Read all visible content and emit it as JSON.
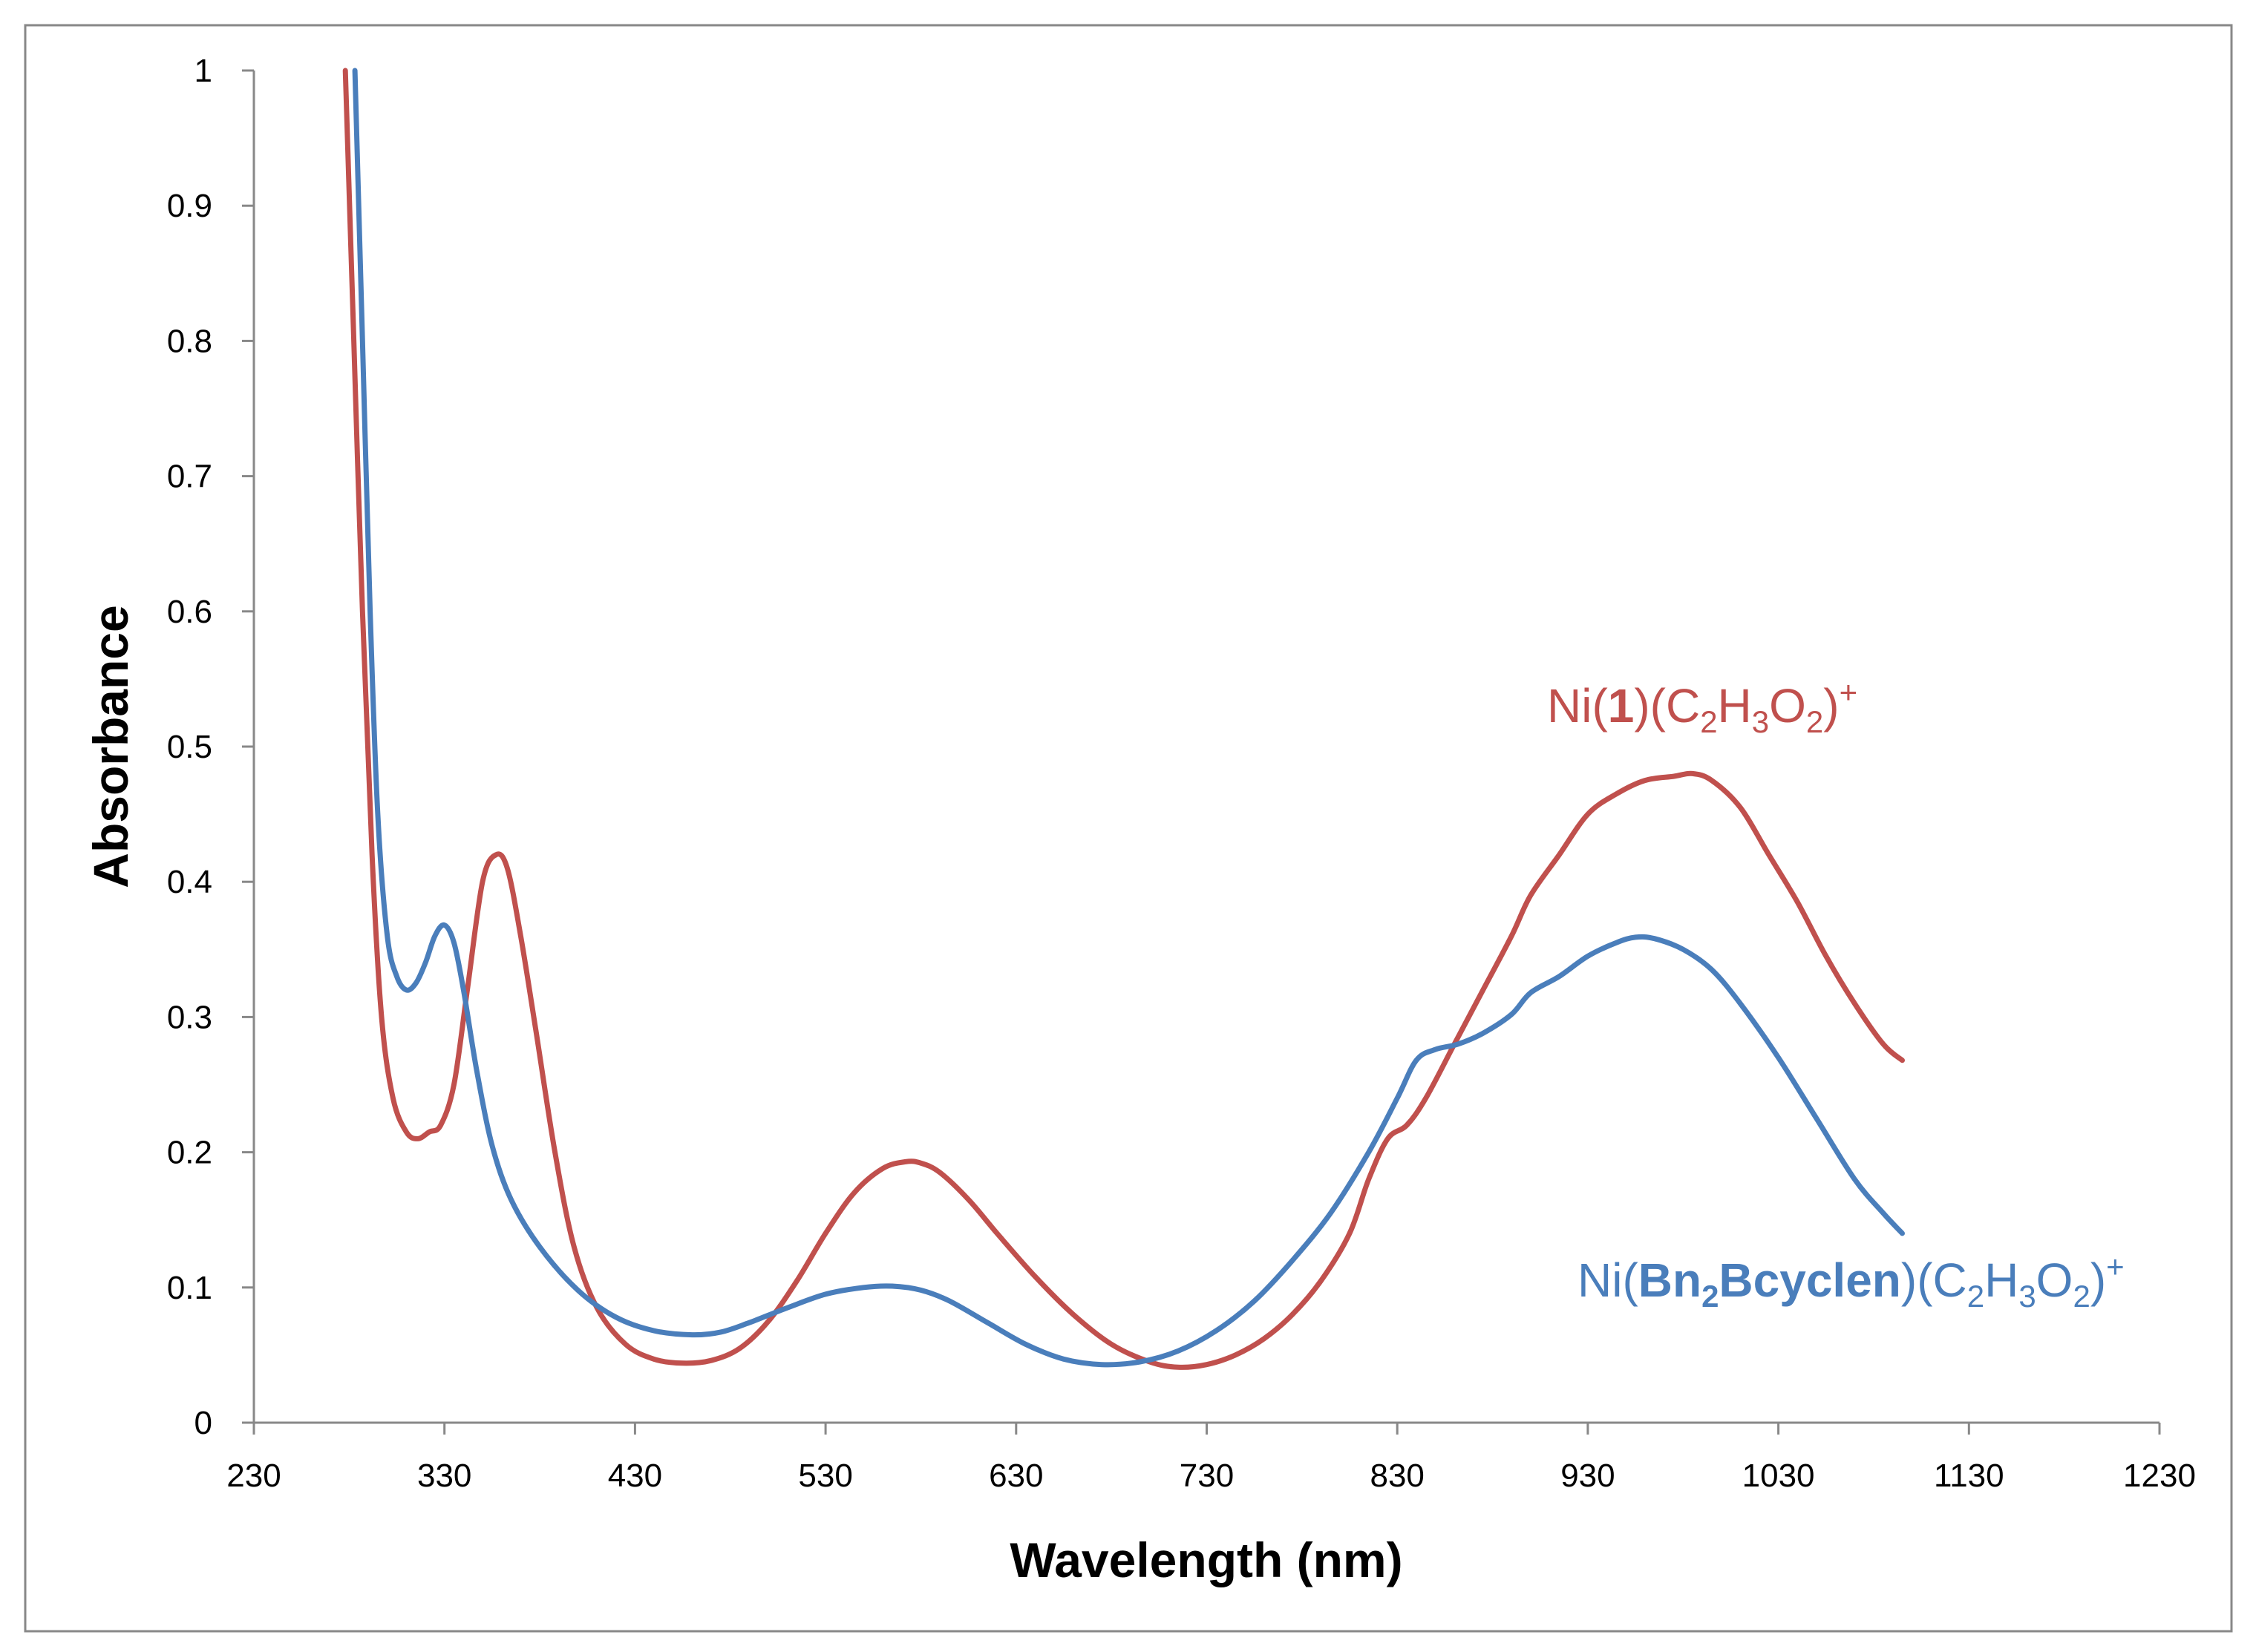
{
  "chart_data": {
    "type": "line",
    "title": "",
    "xlabel": "Wavelength (nm)",
    "ylabel": "Absorbance",
    "xlim": [
      230,
      1230
    ],
    "ylim": [
      0,
      1
    ],
    "grid": false,
    "x_ticks": [
      "230",
      "330",
      "430",
      "530",
      "630",
      "730",
      "830",
      "930",
      "1030",
      "1130",
      "1230"
    ],
    "y_ticks": [
      "0",
      "0.1",
      "0.2",
      "0.3",
      "0.4",
      "0.5",
      "0.6",
      "0.7",
      "0.8",
      "0.9",
      "1"
    ],
    "series": [
      {
        "name": "Ni(1)(C2H3O2)+",
        "label_parts": {
          "prefix": "Ni(",
          "ligand": "1",
          "mid": ")(C",
          "s1": "2",
          "h": "H",
          "s2": "3",
          "o": "O",
          "s3": "2",
          "close": ")",
          "charge": "+"
        },
        "color": "#c0504d",
        "x": [
          278,
          282,
          287,
          292,
          297,
          303,
          310,
          316,
          322,
          328,
          335,
          342,
          350,
          357,
          363,
          370,
          378,
          388,
          398,
          410,
          425,
          440,
          455,
          470,
          485,
          500,
          515,
          530,
          545,
          560,
          572,
          580,
          590,
          605,
          620,
          640,
          660,
          680,
          700,
          715,
          730,
          745,
          760,
          775,
          790,
          805,
          815,
          825,
          835,
          845,
          860,
          875,
          890,
          900,
          915,
          930,
          945,
          960,
          975,
          985,
          995,
          1010,
          1025,
          1040,
          1055,
          1070,
          1085,
          1095
        ],
        "y": [
          1.0,
          0.82,
          0.6,
          0.42,
          0.3,
          0.24,
          0.215,
          0.21,
          0.215,
          0.22,
          0.25,
          0.32,
          0.4,
          0.42,
          0.41,
          0.36,
          0.29,
          0.2,
          0.13,
          0.085,
          0.058,
          0.047,
          0.044,
          0.046,
          0.055,
          0.075,
          0.105,
          0.14,
          0.17,
          0.188,
          0.193,
          0.192,
          0.185,
          0.165,
          0.14,
          0.108,
          0.08,
          0.058,
          0.045,
          0.041,
          0.043,
          0.05,
          0.062,
          0.08,
          0.105,
          0.14,
          0.18,
          0.21,
          0.22,
          0.24,
          0.28,
          0.32,
          0.36,
          0.39,
          0.42,
          0.45,
          0.465,
          0.475,
          0.478,
          0.48,
          0.475,
          0.455,
          0.42,
          0.385,
          0.345,
          0.31,
          0.28,
          0.268
        ]
      },
      {
        "name": "Ni(Bn2Bcyclen)(C2H3O2)+",
        "label_parts": {
          "prefix": "Ni(",
          "ligand": "Bn",
          "ligand_sub": "2",
          "ligand_rest": "Bcyclen",
          "mid": ")(C",
          "s1": "2",
          "h": "H",
          "s2": "3",
          "o": "O",
          "s3": "2",
          "close": ")",
          "charge": "+"
        },
        "color": "#4a7ebb",
        "x": [
          283,
          287,
          291,
          295,
          300,
          305,
          310,
          315,
          320,
          325,
          330,
          335,
          340,
          347,
          355,
          365,
          380,
          400,
          420,
          440,
          460,
          475,
          490,
          510,
          530,
          550,
          565,
          580,
          595,
          615,
          635,
          655,
          675,
          695,
          715,
          735,
          755,
          775,
          795,
          815,
          830,
          840,
          850,
          862,
          875,
          890,
          900,
          915,
          930,
          945,
          955,
          965,
          980,
          995,
          1010,
          1030,
          1050,
          1070,
          1085,
          1095
        ],
        "y": [
          1.0,
          0.8,
          0.6,
          0.45,
          0.36,
          0.33,
          0.32,
          0.325,
          0.34,
          0.36,
          0.368,
          0.355,
          0.32,
          0.26,
          0.205,
          0.165,
          0.13,
          0.098,
          0.078,
          0.068,
          0.065,
          0.067,
          0.074,
          0.085,
          0.095,
          0.1,
          0.101,
          0.098,
          0.09,
          0.074,
          0.058,
          0.047,
          0.043,
          0.045,
          0.053,
          0.068,
          0.09,
          0.12,
          0.155,
          0.2,
          0.24,
          0.268,
          0.276,
          0.28,
          0.288,
          0.302,
          0.318,
          0.33,
          0.345,
          0.355,
          0.359,
          0.358,
          0.35,
          0.335,
          0.31,
          0.27,
          0.225,
          0.18,
          0.155,
          0.14
        ]
      }
    ]
  }
}
